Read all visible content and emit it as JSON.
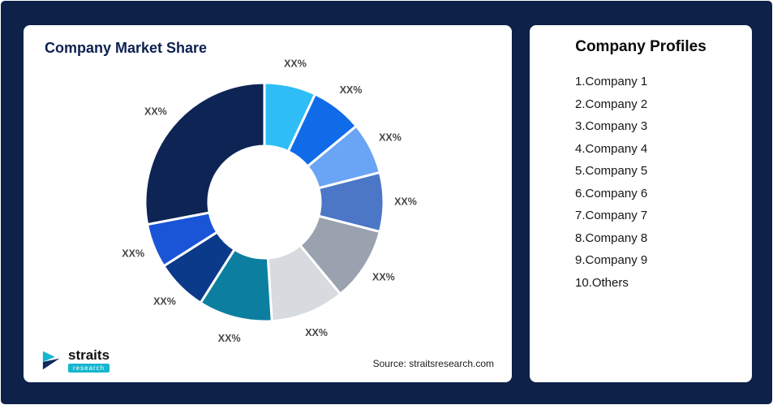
{
  "theme": {
    "page_bg": "#0d2149",
    "card_bg": "#ffffff",
    "accent_teal": "#16b6cf",
    "chart_title_color": "#0e2050",
    "label_color": "#474747"
  },
  "left_card": {
    "title": "Company Market Share",
    "source_text": "Source: straitsresearch.com",
    "logo": {
      "brand": "straits",
      "sub_brand": "research"
    }
  },
  "right_card": {
    "title": "Company Profiles",
    "items": [
      "1.Company 1",
      "2.Company 2",
      "3.Company 3",
      "4.Company 4",
      "5.Company 5",
      "6.Company 6",
      "7.Company 7",
      "8.Company 8",
      "9.Company 9",
      "10.Others"
    ]
  },
  "chart_data": {
    "type": "pie",
    "subtype": "donut",
    "title": "Company Market Share",
    "labels": [
      "XX%",
      "XX%",
      "XX%",
      "XX%",
      "XX%",
      "XX%",
      "XX%",
      "XX%",
      "XX%",
      "XX%"
    ],
    "series": [
      {
        "name": "Company 1",
        "value": 7,
        "color": "#2EBDF6"
      },
      {
        "name": "Company 2",
        "value": 7,
        "color": "#0F6BE8"
      },
      {
        "name": "Company 3",
        "value": 7,
        "color": "#6AA4F4"
      },
      {
        "name": "Company 4",
        "value": 8,
        "color": "#4C77C6"
      },
      {
        "name": "Company 5",
        "value": 10,
        "color": "#99A2AE"
      },
      {
        "name": "Company 6",
        "value": 10,
        "color": "#D7DADF"
      },
      {
        "name": "Company 7",
        "value": 10,
        "color": "#0C7FA0"
      },
      {
        "name": "Company 8",
        "value": 7,
        "color": "#0B3A8A"
      },
      {
        "name": "Company 9",
        "value": 6,
        "color": "#1A55D7"
      },
      {
        "name": "Others",
        "value": 28,
        "color": "#0D2455"
      }
    ],
    "start_angle_deg": -90,
    "direction": "clockwise",
    "inner_radius_ratio": 0.47,
    "legend_position": "none"
  }
}
